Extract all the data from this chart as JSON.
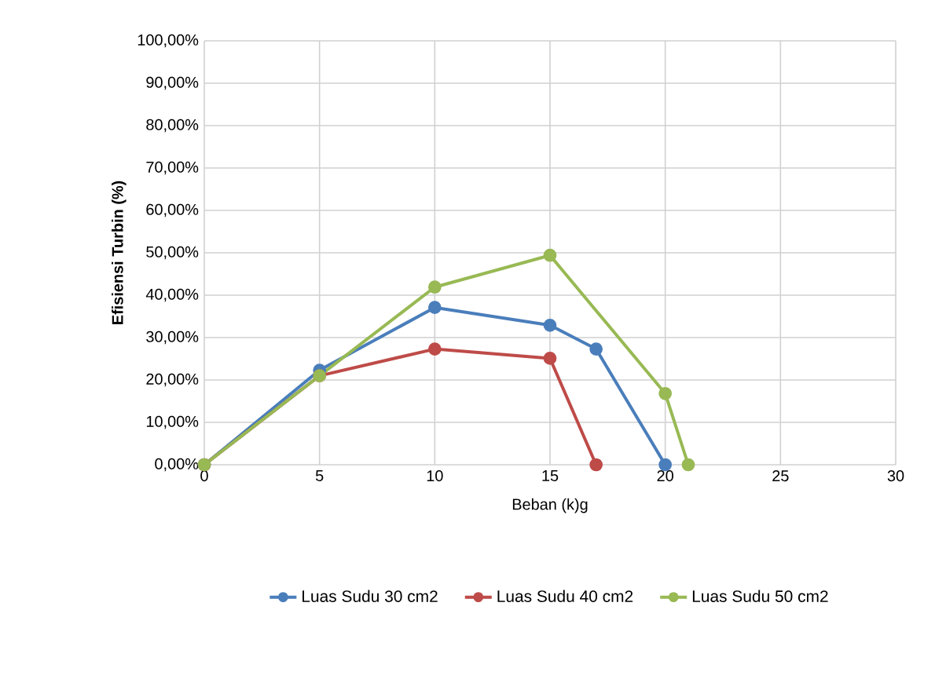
{
  "chart_data": {
    "type": "line",
    "xlabel": "Beban (k)g",
    "ylabel": "Efisiensi Turbin (%)",
    "xlim": [
      0,
      30
    ],
    "xticks": [
      0,
      5,
      10,
      15,
      20,
      25,
      30
    ],
    "ylim": [
      0,
      100
    ],
    "yticks": [
      {
        "value": 0,
        "label": "0,00%"
      },
      {
        "value": 10,
        "label": "10,00%"
      },
      {
        "value": 20,
        "label": "20,00%"
      },
      {
        "value": 30,
        "label": "30,00%"
      },
      {
        "value": 40,
        "label": "40,00%"
      },
      {
        "value": 50,
        "label": "50,00%"
      },
      {
        "value": 60,
        "label": "60,00%"
      },
      {
        "value": 70,
        "label": "70,00%"
      },
      {
        "value": 80,
        "label": "80,00%"
      },
      {
        "value": 90,
        "label": "90,00%"
      },
      {
        "value": 100,
        "label": "100,00%"
      }
    ],
    "grid": true,
    "legend": "bottom",
    "marker": "circle",
    "line_style": "solid",
    "series": [
      {
        "name": "Luas Sudu 30 cm2",
        "color": "#4a7ebb",
        "x": [
          0,
          5,
          10,
          15,
          17,
          20
        ],
        "values": [
          0,
          22.3,
          37.1,
          32.9,
          27.3,
          0
        ]
      },
      {
        "name": "Luas Sudu 40 cm2",
        "color": "#be4b48",
        "x": [
          0,
          5,
          10,
          15,
          17
        ],
        "values": [
          0,
          21,
          27.3,
          25.1,
          0
        ]
      },
      {
        "name": "Luas Sudu 50 cm2",
        "color": "#98b954",
        "x": [
          0,
          5,
          10,
          15,
          20,
          21
        ],
        "values": [
          0,
          21,
          41.9,
          49.4,
          16.8,
          0
        ]
      }
    ]
  }
}
